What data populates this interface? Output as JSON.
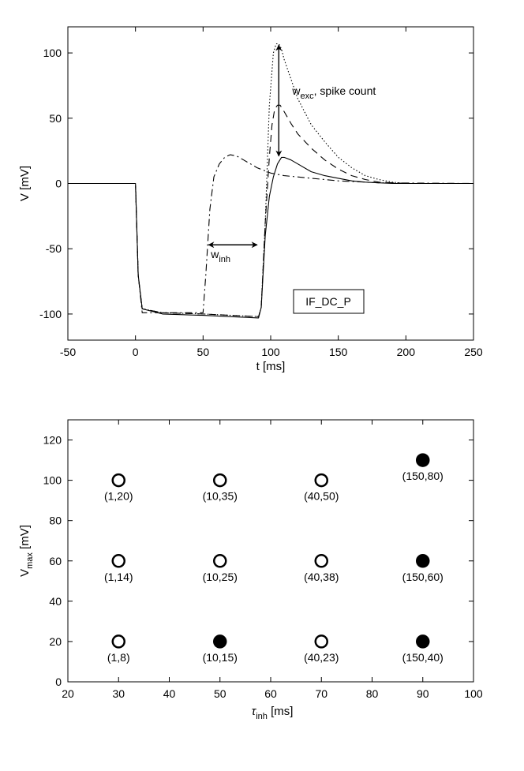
{
  "chart_data": [
    {
      "type": "line",
      "xlabel": "t [ms]",
      "ylabel": "V [mV]",
      "xlim": [
        -50,
        250
      ],
      "ylim": [
        -120,
        120
      ],
      "xticks": [
        -50,
        0,
        50,
        100,
        150,
        200,
        250
      ],
      "yticks": [
        -100,
        -50,
        0,
        50,
        100
      ],
      "grid": false,
      "legend_box_text": "IF_DC_P",
      "annotations": {
        "w_inh": {
          "main": "w",
          "sub": "inh"
        },
        "w_exc": {
          "main": "w",
          "sub": "exc",
          "suffix": ", spike count"
        }
      },
      "series": [
        {
          "style": "dotted",
          "x": [
            -50,
            0,
            2,
            5,
            20,
            50,
            91,
            93,
            96,
            99,
            102,
            104,
            106,
            108,
            110,
            115,
            120,
            130,
            140,
            150,
            160,
            170,
            180,
            190,
            200,
            250
          ],
          "y": [
            0,
            0,
            -70,
            -96,
            -99,
            -100,
            -102,
            -95,
            -30,
            60,
            100,
            107,
            107,
            103,
            95,
            80,
            65,
            45,
            32,
            20,
            12,
            6,
            3,
            1,
            0,
            0
          ]
        },
        {
          "style": "dashed",
          "x": [
            -50,
            0,
            2,
            5,
            20,
            50,
            91,
            93,
            96,
            99,
            101,
            103,
            105,
            107,
            110,
            115,
            120,
            130,
            140,
            150,
            160,
            170,
            180,
            200,
            250
          ],
          "y": [
            0,
            0,
            -70,
            -96,
            -99,
            -100,
            -102,
            -95,
            -30,
            20,
            45,
            57,
            60,
            60,
            55,
            46,
            38,
            27,
            18,
            11,
            6,
            3,
            1,
            0,
            0
          ]
        },
        {
          "style": "solid",
          "x": [
            -50,
            0,
            2,
            5,
            20,
            50,
            91,
            93,
            96,
            99,
            102,
            105,
            108,
            110,
            115,
            120,
            130,
            140,
            150,
            160,
            170,
            180,
            190,
            250
          ],
          "y": [
            0,
            0,
            -70,
            -96,
            -100,
            -101,
            -103,
            -95,
            -40,
            -10,
            5,
            15,
            20,
            20,
            18,
            15,
            9,
            6,
            4,
            2,
            1,
            0.5,
            0,
            0
          ]
        },
        {
          "style": "dashdot",
          "x": [
            -50,
            0,
            2,
            5,
            20,
            50,
            52,
            55,
            58,
            62,
            66,
            70,
            75,
            80,
            90,
            100,
            110,
            120,
            130,
            140,
            150,
            160,
            170,
            180,
            250
          ],
          "y": [
            0,
            0,
            -70,
            -99,
            -99,
            -99,
            -70,
            -20,
            5,
            15,
            20,
            22,
            21,
            18,
            12,
            8,
            6,
            5,
            4,
            3,
            2,
            1.5,
            1,
            0.5,
            0
          ]
        }
      ]
    },
    {
      "type": "scatter",
      "xlabel_symbol": "τ",
      "xlabel_sub": "inh",
      "xlabel_unit": "[ms]",
      "ylabel_main": "V",
      "ylabel_sub": "max",
      "ylabel_unit": "[mV]",
      "xlim": [
        20,
        100
      ],
      "ylim": [
        0,
        130
      ],
      "xticks": [
        20,
        30,
        40,
        50,
        60,
        70,
        80,
        90,
        100
      ],
      "yticks": [
        0,
        20,
        40,
        60,
        80,
        100,
        120
      ],
      "grid": false,
      "points": [
        {
          "x": 30,
          "y": 100,
          "filled": false,
          "label": "(1,20)"
        },
        {
          "x": 50,
          "y": 100,
          "filled": false,
          "label": "(10,35)"
        },
        {
          "x": 70,
          "y": 100,
          "filled": false,
          "label": "(40,50)"
        },
        {
          "x": 90,
          "y": 110,
          "filled": true,
          "label": "(150,80)"
        },
        {
          "x": 30,
          "y": 60,
          "filled": false,
          "label": "(1,14)"
        },
        {
          "x": 50,
          "y": 60,
          "filled": false,
          "label": "(10,25)"
        },
        {
          "x": 70,
          "y": 60,
          "filled": false,
          "label": "(40,38)"
        },
        {
          "x": 90,
          "y": 60,
          "filled": true,
          "label": "(150,60)"
        },
        {
          "x": 30,
          "y": 20,
          "filled": false,
          "label": "(1,8)"
        },
        {
          "x": 50,
          "y": 20,
          "filled": true,
          "label": "(10,15)"
        },
        {
          "x": 70,
          "y": 20,
          "filled": false,
          "label": "(40,23)"
        },
        {
          "x": 90,
          "y": 20,
          "filled": true,
          "label": "(150,40)"
        }
      ]
    }
  ]
}
